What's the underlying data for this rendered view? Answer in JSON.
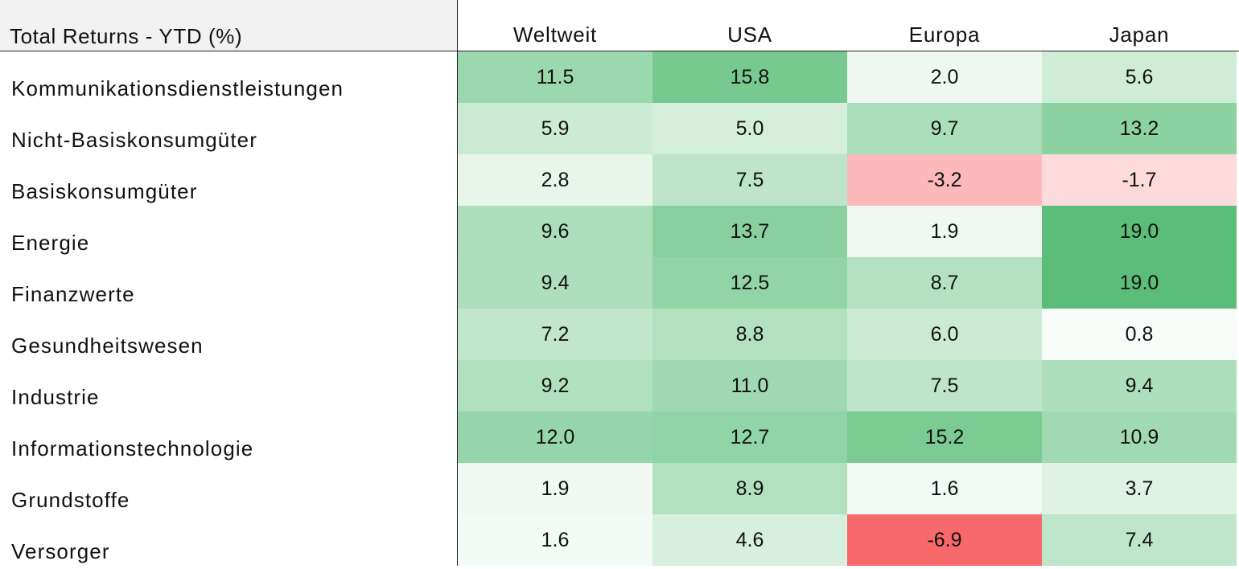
{
  "chart_data": {
    "type": "heatmap",
    "title": "Total Returns - YTD (%)",
    "columns": [
      "Weltweit",
      "USA",
      "Europa",
      "Japan"
    ],
    "rows": [
      {
        "label": "Kommunikationsdienstleistungen",
        "values": [
          "11.5",
          "15.8",
          "2.0",
          "5.6"
        ]
      },
      {
        "label": "Nicht-Basiskonsumgüter",
        "values": [
          "5.9",
          "5.0",
          "9.7",
          "13.2"
        ]
      },
      {
        "label": "Basiskonsumgüter",
        "values": [
          "2.8",
          "7.5",
          "-3.2",
          "-1.7"
        ]
      },
      {
        "label": "Energie",
        "values": [
          "9.6",
          "13.7",
          "1.9",
          "19.0"
        ]
      },
      {
        "label": "Finanzwerte",
        "values": [
          "9.4",
          "12.5",
          "8.7",
          "19.0"
        ]
      },
      {
        "label": "Gesundheitswesen",
        "values": [
          "7.2",
          "8.8",
          "6.0",
          "0.8"
        ]
      },
      {
        "label": "Industrie",
        "values": [
          "9.2",
          "11.0",
          "7.5",
          "9.4"
        ]
      },
      {
        "label": "Informationstechnologie",
        "values": [
          "12.0",
          "12.7",
          "15.2",
          "10.9"
        ]
      },
      {
        "label": "Grundstoffe",
        "values": [
          "1.9",
          "8.9",
          "1.6",
          "3.7"
        ]
      },
      {
        "label": "Versorger",
        "values": [
          "1.6",
          "4.6",
          "-6.9",
          "7.4"
        ]
      }
    ]
  },
  "colors": {
    "positive_max": "#5bbe78",
    "neutral": "#ffffff",
    "negative_max": "#f8696b",
    "header_bg": "#f2f2f2",
    "rule": "#222222"
  }
}
